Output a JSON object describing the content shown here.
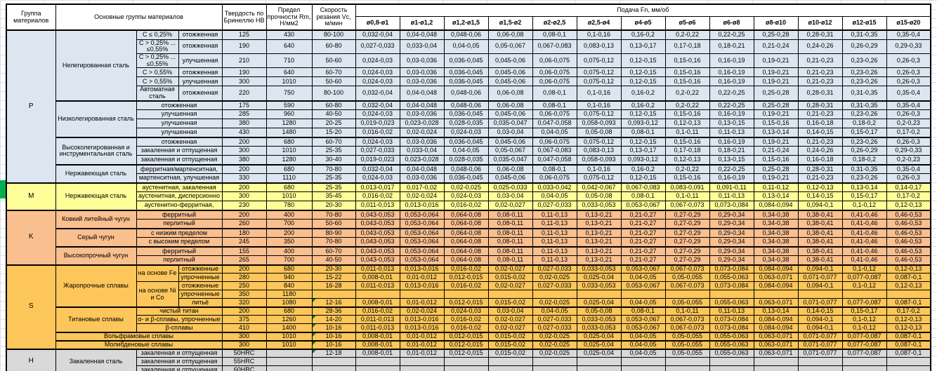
{
  "chrome": {
    "gridline_color": "#d9e0ea",
    "marker_cell_color": "#00b050",
    "flag_color": "#1e7b1e"
  },
  "table": {
    "header": {
      "group": "Группа материалов",
      "materials": "Основные группы материалов",
      "hb": "Твердость по Бринеллю HB",
      "rm": "Предел прочности Rm, Н/мм2",
      "vc": "Скорость резания Vc, м/мин",
      "feed": "Подача Fn, мм/об",
      "diameters": [
        "ø0,8-ø1",
        "ø1-ø1,2",
        "ø1,2-ø1,5",
        "ø1,5-ø2",
        "ø2-ø2,5",
        "ø2,5-ø4",
        "ø4-ø5",
        "ø5-ø6",
        "ø6-ø8",
        "ø8-ø10",
        "ø10-ø12",
        "ø12-ø15",
        "ø15-ø20"
      ],
      "feed_columns": 13
    },
    "feed_patterns": {
      "A": [
        "0,032-0,04",
        "0,04-0,048",
        "0,048-0,06",
        "0,06-0,08",
        "0,08-0,1",
        "0,1-0,16",
        "0,16-0,2",
        "0,2-0,22",
        "0,22-0,25",
        "0,25-0,28",
        "0,28-0,31",
        "0,31-0,35",
        "0,35-0,4"
      ],
      "B": [
        "0,027-0,033",
        "0,033-0,04",
        "0,04-0,05",
        "0,05-0,067",
        "0,067-0,083",
        "0,083-0,13",
        "0,13-0,17",
        "0,17-0,18",
        "0,18-0,21",
        "0,21-0,24",
        "0,24-0,26",
        "0,26-0,29",
        "0,29-0,33"
      ],
      "C": [
        "0,024-0,03",
        "0,03-0,036",
        "0,036-0,045",
        "0,045-0,06",
        "0,06-0,075",
        "0,075-0,12",
        "0,12-0,15",
        "0,15-0,16",
        "0,16-0,19",
        "0,19-0,21",
        "0,21-0,23",
        "0,23-0,26",
        "0,26-0,3"
      ],
      "D": [
        "0,019-0,023",
        "0,023-0,028",
        "0,028-0,035",
        "0,035-0,047",
        "0,047-0,058",
        "0,058-0,093",
        "0,093-0,12",
        "0,12-0,13",
        "0,13-0,15",
        "0,15-0,16",
        "0,16-0,18",
        "0,18-0,2",
        "0,2-0,23"
      ],
      "E": [
        "0,016-0,02",
        "0,02-0,024",
        "0,024-0,03",
        "0,03-0,04",
        "0,04-0,05",
        "0,05-0,08",
        "0,08-0,1",
        "0,1-0,11",
        "0,11-0,13",
        "0,13-0,14",
        "0,14-0,15",
        "0,15-0,17",
        "0,17-0,2"
      ],
      "F": [
        "0,013-0,017",
        "0,017-0,02",
        "0,02-0,025",
        "0,025-0,033",
        "0,033-0,042",
        "0,042-0,067",
        "0,067-0,083",
        "0,083-0,091",
        "0,091-0,11",
        "0,11-0,12",
        "0,12-0,13",
        "0,13-0,14",
        "0,14-0,17"
      ],
      "G": [
        "0,011-0,013",
        "0,013-0,016",
        "0,016-0,02",
        "0,02-0,027",
        "0,027-0,033",
        "0,033-0,053",
        "0,053-0,067",
        "0,067-0,073",
        "0,073-0,084",
        "0,084-0,094",
        "0,094-0,1",
        "0,1-0,12",
        "0,12-0,13"
      ],
      "H": [
        "0,043-0,053",
        "0,053-0,064",
        "0,064-0,08",
        "0,08-0,11",
        "0,11-0,13",
        "0,13-0,21",
        "0,21-0,27",
        "0,27-0,29",
        "0,29-0,34",
        "0,34-0,38",
        "0,38-0,41",
        "0,41-0,46",
        "0,46-0,53"
      ],
      "I": [
        "0,008-0,01",
        "0,01-0,012",
        "0,012-0,015",
        "0,015-0,02",
        "0,02-0,025",
        "0,025-0,04",
        "0,04-0,05",
        "0,05-0,055",
        "0,055-0,063",
        "0,063-0,071",
        "0,071-0,077",
        "0,077-0,087",
        "0,087-0,1"
      ],
      "none": [
        "",
        "",
        "",
        "",
        "",
        "",
        "",
        "",
        "",
        "",
        "",
        "",
        ""
      ]
    },
    "groups": [
      {
        "letter": "P",
        "fill": "#dce6f1",
        "sections": [
          {
            "name": "Нелегированная сталь",
            "rows": [
              {
                "c1": "C ≤ 0,25%",
                "c2": "отожженная",
                "hb": "125",
                "rm": "430",
                "vc": "80-100",
                "f": "A",
                "h": 1
              },
              {
                "c1": "C > 0,25% ... ≤0,55%",
                "c2": "отожженная",
                "hb": "190",
                "rm": "640",
                "vc": "60-80",
                "f": "B",
                "h": 2
              },
              {
                "c1": "C > 0,25% ... ≤0,55%",
                "c2": "улучшенная",
                "hb": "210",
                "rm": "710",
                "vc": "50-60",
                "f": "C",
                "h": 2
              },
              {
                "c1": "C > 0,55%",
                "c2": "отожженная",
                "hb": "190",
                "rm": "640",
                "vc": "60-70",
                "f": "C",
                "h": 1
              },
              {
                "c1": "C > 0,55%",
                "c2": "улучшенная",
                "hb": "300",
                "rm": "1010",
                "vc": "50-60",
                "f": "C",
                "h": 1
              },
              {
                "c1": "Автоматная сталь",
                "c2": "отожженная",
                "hb": "220",
                "rm": "750",
                "vc": "80-100",
                "f": "A",
                "h": 2
              }
            ]
          },
          {
            "name": "Низколегированная сталь",
            "rows": [
              {
                "c12": "отожженная",
                "hb": "175",
                "rm": "590",
                "vc": "60-80",
                "f": "A"
              },
              {
                "c12": "улучшенная",
                "hb": "285",
                "rm": "960",
                "vc": "40-50",
                "f": "C"
              },
              {
                "c12": "улучшенная",
                "hb": "380",
                "rm": "1280",
                "vc": "20-25",
                "f": "D"
              },
              {
                "c12": "улучшенная",
                "hb": "430",
                "rm": "1480",
                "vc": "15-20",
                "f": "E"
              }
            ]
          },
          {
            "name": "Высоколегированная и инструментальная сталь",
            "rows": [
              {
                "c12": "отожженная",
                "hb": "200",
                "rm": "680",
                "vc": "60-70",
                "f": "C"
              },
              {
                "c12": "закаленная и отпущенная",
                "hb": "300",
                "rm": "1010",
                "vc": "25-35",
                "f": "B"
              },
              {
                "c12": "закаленная и отпущенная",
                "hb": "380",
                "rm": "1280",
                "vc": "30-40",
                "f": "D"
              }
            ]
          },
          {
            "name": "Нержавеющая сталь",
            "rows": [
              {
                "c12": "ферритная/мартенситная,",
                "hb": "200",
                "rm": "680",
                "vc": "70-80",
                "f": "A"
              },
              {
                "c12": "мартенситная, улучшенная",
                "hb": "330",
                "rm": "1110",
                "vc": "25-35",
                "f": "C"
              }
            ]
          }
        ]
      },
      {
        "letter": "M",
        "fill": "#ffff99",
        "sections": [
          {
            "name": "Нержавеющая сталь",
            "rows": [
              {
                "c12": "аустенитная, закаленная",
                "hb": "200",
                "rm": "680",
                "vc": "25-35",
                "f": "F"
              },
              {
                "c12": "аустенитная, дисперсионно",
                "hb": "300",
                "rm": "1010",
                "vc": "35-45",
                "f": "E"
              },
              {
                "c12": "аустенитно-ферритная,",
                "hb": "230",
                "rm": "780",
                "vc": "20-30",
                "f": "G"
              }
            ]
          }
        ]
      },
      {
        "letter": "K",
        "fill": "#fabf8f",
        "sections": [
          {
            "name": "Ковкий литейный чугун",
            "rows": [
              {
                "c12": "ферритный",
                "hb": "200",
                "rm": "400",
                "vc": "70-80",
                "f": "H"
              },
              {
                "c12": "перлитный",
                "hb": "260",
                "rm": "700",
                "vc": "50-60",
                "f": "H"
              }
            ]
          },
          {
            "name": "Серый чугун",
            "rows": [
              {
                "c12": "с низким пределом",
                "hb": "180",
                "rm": "200",
                "vc": "80-90",
                "f": "H"
              },
              {
                "c12": "с высоким пределом",
                "hb": "245",
                "rm": "350",
                "vc": "70-80",
                "f": "H"
              }
            ]
          },
          {
            "name": "Высокопрочный чугун",
            "rows": [
              {
                "c12": "ферритный",
                "hb": "155",
                "rm": "400",
                "vc": "60-70",
                "f": "H"
              },
              {
                "c12": "перлитный",
                "hb": "265",
                "rm": "700",
                "vc": "40-50",
                "f": "H"
              }
            ]
          }
        ]
      },
      {
        "letter": "S",
        "fill": "#fcc65a",
        "sections": [
          {
            "name": "Жаропрочные сплавы",
            "rows": [
              {
                "c1": "на основе Fe",
                "c1span": 2,
                "c2": "отожженные",
                "hb": "200",
                "rm": "680",
                "vc": "20-30",
                "f": "G"
              },
              {
                "c2": "упрочненные",
                "hb": "280",
                "rm": "940",
                "vc": "15-22",
                "f": "I"
              },
              {
                "c1": "на основе Ni и Co",
                "c1span": 3,
                "c2": "отожженные",
                "hb": "250",
                "rm": "840",
                "vc": "16-28",
                "f": "G"
              },
              {
                "c2": "упрочненные",
                "hb": "350",
                "rm": "1180",
                "vc": "",
                "f": "none"
              },
              {
                "c2": "литьё",
                "hb": "320",
                "rm": "1080",
                "vc": "12-16",
                "vc_flag": true,
                "f": "I"
              }
            ]
          },
          {
            "name": "Титановые сплавы",
            "rows": [
              {
                "c12": "чистый титан",
                "hb": "200",
                "rm": "680",
                "vc": "28-36",
                "f": "E"
              },
              {
                "c12": "α- и β-сплавы, упрочненные",
                "hb": "375",
                "rm": "1260",
                "vc": "14-20",
                "vc_flag": true,
                "f": "G"
              },
              {
                "c12": "β-сплавы",
                "hb": "410",
                "rm": "1400",
                "vc": "10-16",
                "vc_flag": true,
                "f": "G"
              }
            ]
          },
          {
            "name": "Вольфрамовые сплавы",
            "wide": true,
            "rows": [
              {
                "hb": "300",
                "rm": "1010",
                "vc": "10-16",
                "vc_flag": true,
                "f": "I"
              }
            ]
          },
          {
            "name": "Молибденовые сплавы",
            "wide": true,
            "rows": [
              {
                "hb": "300",
                "rm": "1010",
                "vc": "10-16",
                "vc_flag": true,
                "f": "I"
              }
            ]
          }
        ]
      },
      {
        "letter": "H",
        "fill": "#d9d9d9",
        "sections": [
          {
            "name": "Закаленная сталь",
            "rows": [
              {
                "c12": "закаленная и отпущенная",
                "hb": "50HRC",
                "rm": "",
                "vc": "12-18",
                "vc_flag": true,
                "f": "I"
              },
              {
                "c12": "закаленная и отпущенная",
                "hb": "55HRC",
                "rm": "",
                "vc": "",
                "f": "none"
              },
              {
                "c12": "закаленная и отпущенная",
                "hb": "60HRC",
                "rm": "",
                "vc": "",
                "f": "none"
              }
            ]
          }
        ]
      }
    ]
  }
}
